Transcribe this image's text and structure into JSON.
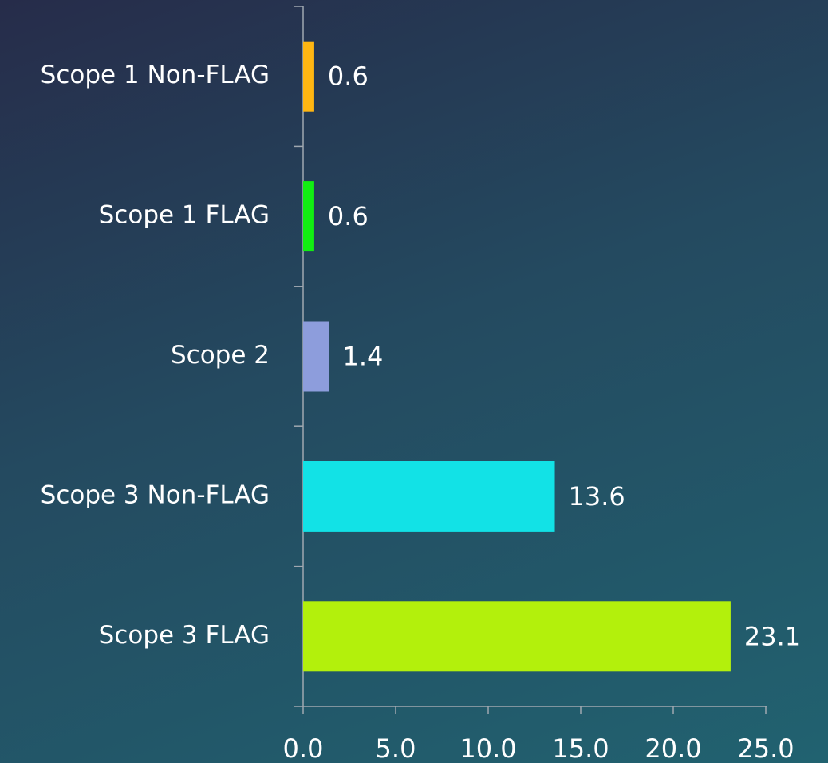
{
  "chart_data": {
    "type": "barh",
    "categories": [
      "Scope 1 Non-FLAG",
      "Scope 1 FLAG",
      "Scope 2",
      "Scope 3 Non-FLAG",
      "Scope 3 FLAG"
    ],
    "values": [
      0.6,
      0.6,
      1.4,
      13.6,
      23.1
    ],
    "colors": [
      "#ffb612",
      "#12ee12",
      "#8d9ddc",
      "#12e2e6",
      "#b3f00c"
    ],
    "xlim": [
      0,
      25
    ],
    "xticks": [
      {
        "value": 0,
        "label": "0.0"
      },
      {
        "value": 5,
        "label": "5.0"
      },
      {
        "value": 10,
        "label": "10.0"
      },
      {
        "value": 15,
        "label": "15.0"
      },
      {
        "value": 20,
        "label": "20.0"
      },
      {
        "value": 25,
        "label": "25.0"
      }
    ],
    "grid": false
  }
}
